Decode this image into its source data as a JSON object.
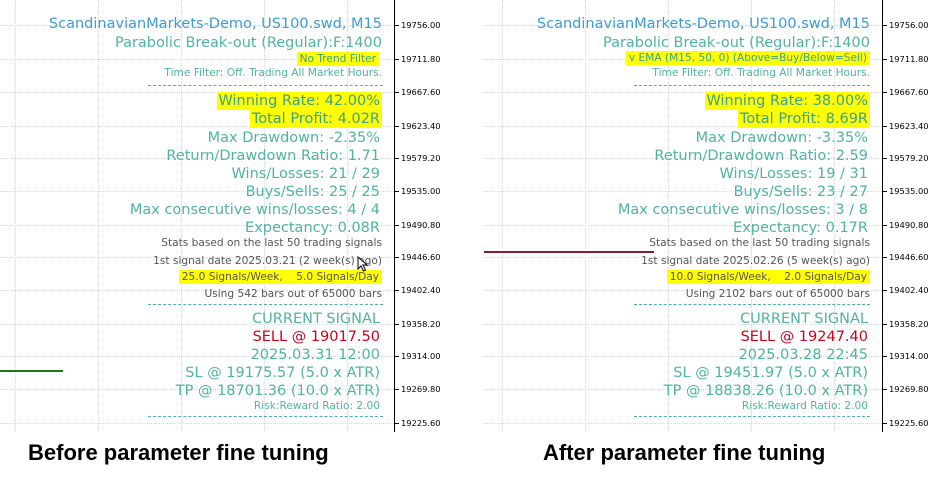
{
  "colors": {
    "text_teal": "#4fb3a3",
    "title_blue": "#3c9dd6",
    "highlight": "#ffff00",
    "sell_red": "#d0021b",
    "line_green": "#1a7a1a",
    "line_maroon": "#8b1a2b"
  },
  "price_axis": [
    "19756.00",
    "19711.80",
    "19667.60",
    "19623.40",
    "19579.20",
    "19535.00",
    "19490.80",
    "19446.60",
    "19402.40",
    "19358.20",
    "19314.00",
    "19269.80",
    "19225.60"
  ],
  "left": {
    "title": "ScandinavianMarkets-Demo, US100.swd, M15",
    "strategy": "Parabolic Break-out (Regular):F:1400",
    "trend_filter": "No Trend Filter",
    "time_filter": "Time Filter: Off. Trading All Market Hours.",
    "winning_rate": "Winning Rate: 42.00%",
    "total_profit": "Total Profit: 4.02R",
    "max_drawdown": "Max Drawdown: -2.35%",
    "return_drawdown": "Return/Drawdown Ratio: 1.71",
    "wins_losses": "Wins/Losses: 21 / 29",
    "buys_sells": "Buys/Sells: 25 / 25",
    "max_consecutive": "Max consecutive wins/losses: 4 / 4",
    "expectancy": "Expectancy: 0.08R",
    "stats_based": "Stats based on the last 50 trading signals",
    "first_signal": "1st signal date 2025.03.21 (2 week(s) ago)",
    "signals_rate": "25.0 Signals/Week,    5.0 Signals/Day",
    "bars_used": "Using 542 bars out of 65000 bars",
    "current_signal": "CURRENT SIGNAL",
    "signal": "SELL @ 19017.50",
    "signal_time": "2025.03.31 12:00",
    "sl": "SL @ 19175.57 (5.0 x ATR)",
    "tp": "TP @ 18701.36 (10.0 x ATR)",
    "risk_reward": "Risk:Reward Ratio: 2.00"
  },
  "right": {
    "title": "ScandinavianMarkets-Demo, US100.swd, M15",
    "strategy": "Parabolic Break-out (Regular):F:1400",
    "trend_filter": "v EMA (M15, 50, 0) (Above=Buy/Below=Sell)",
    "time_filter": "Time Filter: Off. Trading All Market Hours.",
    "winning_rate": "Winning Rate: 38.00%",
    "total_profit": "Total Profit: 8.69R",
    "max_drawdown": "Max Drawdown: -3.35%",
    "return_drawdown": "Return/Drawdown Ratio: 2.59",
    "wins_losses": "Wins/Losses: 19 / 31",
    "buys_sells": "Buys/Sells: 23 / 27",
    "max_consecutive": "Max consecutive wins/losses: 3 / 8",
    "expectancy": "Expectancy: 0.17R",
    "stats_based": "Stats based on the last 50 trading signals",
    "first_signal": "1st signal date 2025.02.26 (5 week(s) ago)",
    "signals_rate": "10.0 Signals/Week,    2.0 Signals/Day",
    "bars_used": "Using 2102 bars out of 65000 bars",
    "current_signal": "CURRENT SIGNAL",
    "signal": "SELL @ 19247.40",
    "signal_time": "2025.03.28 22:45",
    "sl": "SL @ 19451.97 (5.0 x ATR)",
    "tp": "TP @ 18838.26 (10.0 x ATR)",
    "risk_reward": "Risk:Reward Ratio: 2.00"
  },
  "captions": {
    "left": "Before parameter fine tuning",
    "right": "After parameter fine tuning"
  }
}
